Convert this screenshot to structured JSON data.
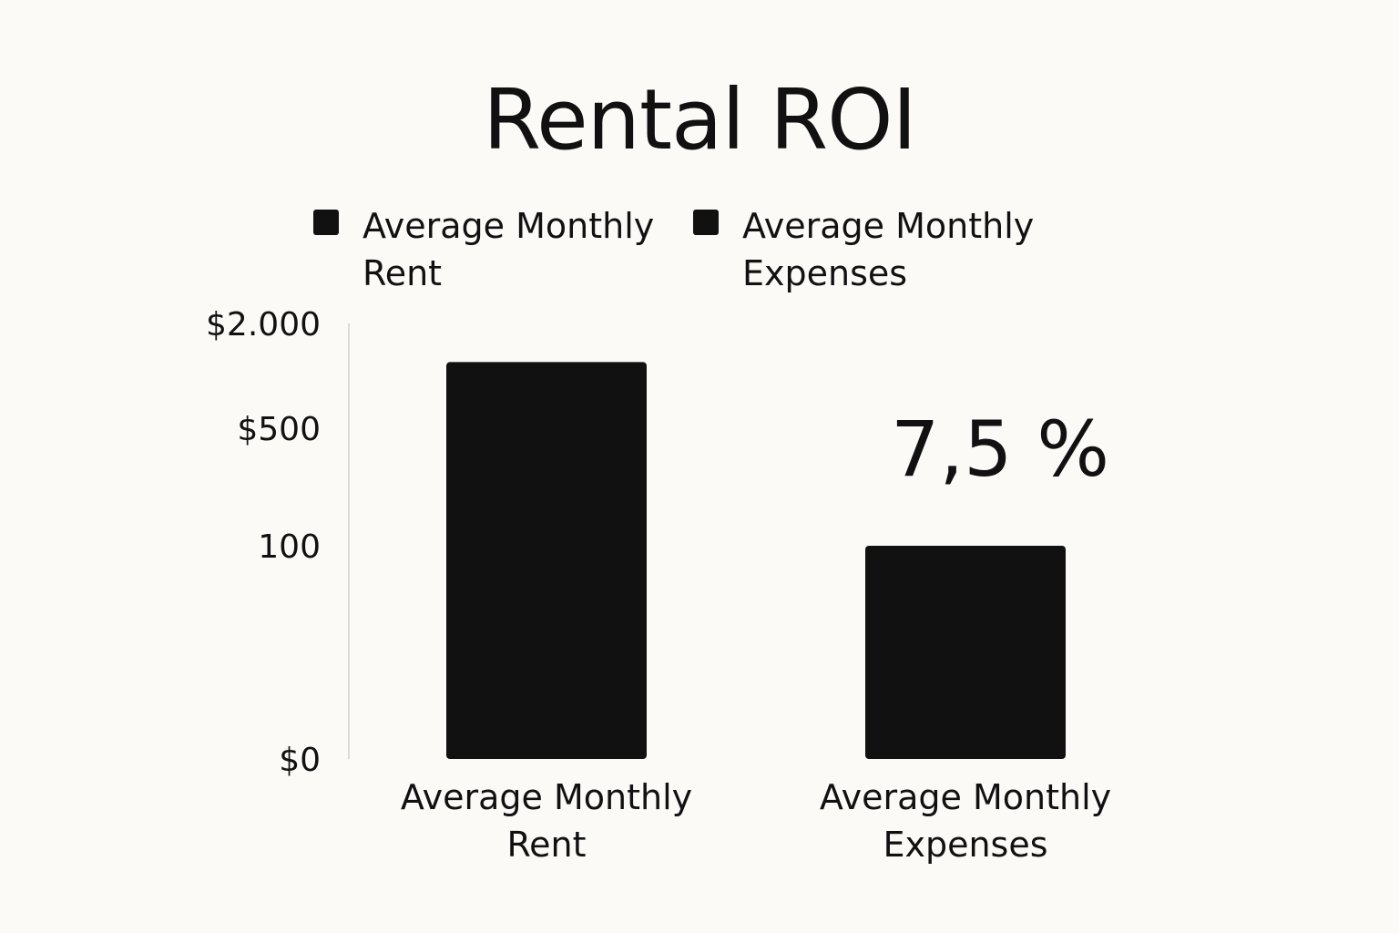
{
  "chart_data": {
    "type": "bar",
    "title": "Rental ROI",
    "categories": [
      "Average Monthly Rent",
      "Average Monthly Expenses"
    ],
    "category_lines": [
      [
        "Average Monthly",
        "Rent"
      ],
      [
        "Average Monthly",
        "Expenses"
      ]
    ],
    "series": [
      {
        "name": "Average Monthly Rent",
        "values": [
          1200,
          null
        ]
      },
      {
        "name": "Average Monthly Expenses",
        "values": [
          null,
          100
        ]
      }
    ],
    "legend": [
      {
        "label_lines": [
          "Average Monthly",
          "Rent"
        ],
        "color": "#111111"
      },
      {
        "label_lines": [
          "Average Monthly",
          "Expenses"
        ],
        "color": "#111111"
      }
    ],
    "yticks": [
      {
        "value": 0,
        "label": "$0"
      },
      {
        "value": 30,
        "label": ""
      },
      {
        "value": 100,
        "label": "100"
      },
      {
        "value": 500,
        "label": "$500"
      },
      {
        "value": 2000,
        "label": "$2.000"
      }
    ],
    "yscale": "log",
    "ylim": [
      0,
      2000
    ],
    "annotation": "7,5 %",
    "legend_position": "top",
    "grid": true,
    "bar_color": "#111111",
    "grid_color": "#dedbd5"
  }
}
